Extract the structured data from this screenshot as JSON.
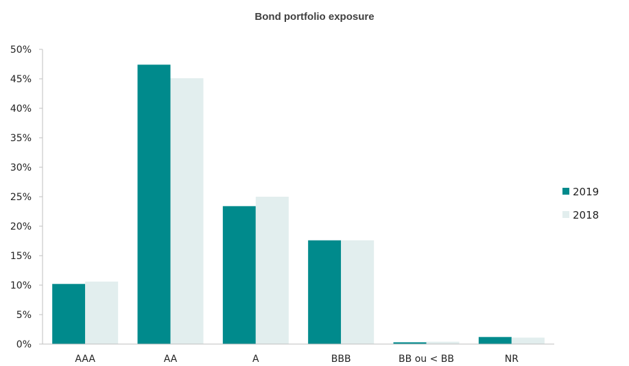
{
  "chart_data": {
    "type": "bar",
    "title": "Bond portfolio exposure",
    "categories": [
      "AAA",
      "AA",
      "A",
      "BBB",
      "BB ou < BB",
      "NR"
    ],
    "series": [
      {
        "name": "2019",
        "color": "#008a8c",
        "values": [
          10.2,
          47.4,
          23.4,
          17.6,
          0.3,
          1.2
        ]
      },
      {
        "name": "2018",
        "color": "#e2eeee",
        "values": [
          10.6,
          45.1,
          25.0,
          17.6,
          0.4,
          1.1
        ]
      }
    ],
    "ylim": [
      0,
      50
    ],
    "yticks": [
      "0%",
      "5%",
      "10%",
      "15%",
      "20%",
      "25%",
      "30%",
      "35%",
      "40%",
      "45%",
      "50%"
    ],
    "xlabel": "",
    "ylabel": "",
    "grid": false,
    "legend_position": "right"
  }
}
